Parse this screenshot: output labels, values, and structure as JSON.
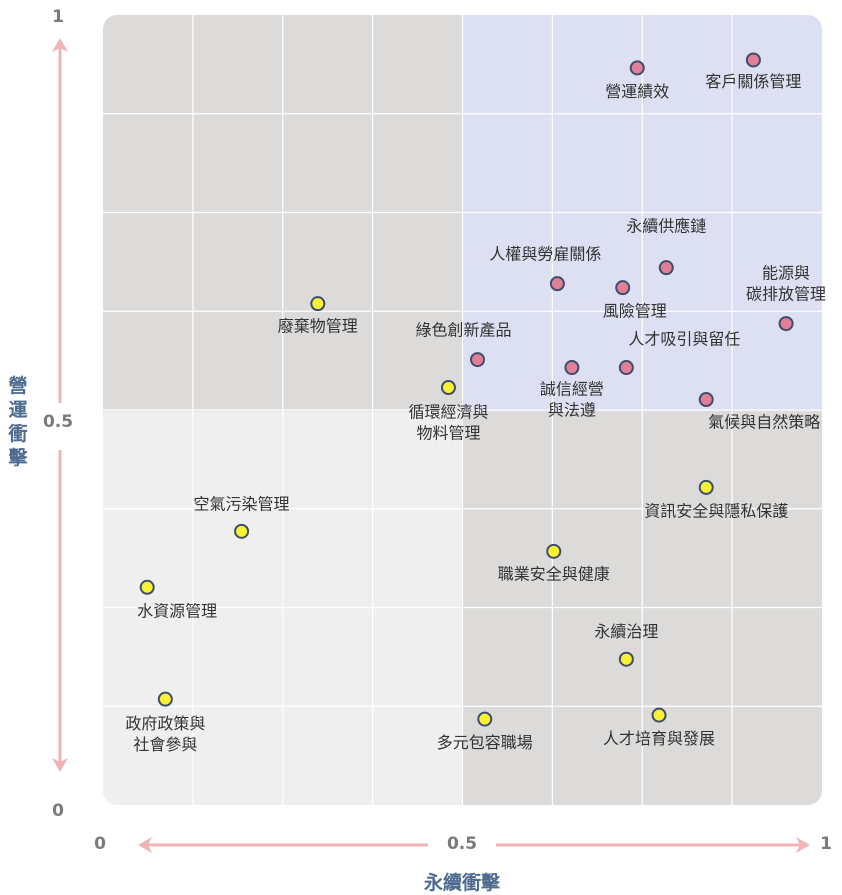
{
  "chart_data": {
    "type": "scatter",
    "xlabel": "永續衝擊",
    "ylabel": "營運衝擊",
    "xlim": [
      0,
      1
    ],
    "ylim": [
      0,
      1
    ],
    "x_ticks": [
      "0",
      "0.5",
      "1"
    ],
    "y_ticks": [
      "0",
      "0.5",
      "1"
    ],
    "grid": true,
    "quadrant_colors": {
      "top_left": "#dcdbd9",
      "top_right": "#dddff2",
      "bottom_left": "#efefef",
      "bottom_right": "#dcdbd9"
    },
    "marker_colors": {
      "pink": "#e07f95",
      "yellow": "#f8f234",
      "edge": "#3f4d6b"
    },
    "arrow_color": "#f0b4b4",
    "points": [
      {
        "label": [
          "客戶關係管理"
        ],
        "x": 0.9,
        "y": 0.94,
        "color": "pink"
      },
      {
        "label": [
          "營運績效"
        ],
        "x": 0.74,
        "y": 0.93,
        "color": "pink"
      },
      {
        "label": [
          "永續供應鏈"
        ],
        "x": 0.78,
        "y": 0.68,
        "color": "pink"
      },
      {
        "label": [
          "人權與勞雇關係"
        ],
        "x": 0.63,
        "y": 0.66,
        "color": "pink"
      },
      {
        "label": [
          "風險管理"
        ],
        "x": 0.72,
        "y": 0.655,
        "color": "pink"
      },
      {
        "label": [
          "能源與",
          "碳排放管理"
        ],
        "x": 0.945,
        "y": 0.61,
        "color": "pink"
      },
      {
        "label": [
          "綠色創新產品"
        ],
        "x": 0.52,
        "y": 0.565,
        "color": "pink"
      },
      {
        "label": [
          "人才吸引與留任"
        ],
        "x": 0.725,
        "y": 0.555,
        "color": "pink"
      },
      {
        "label": [
          "誠信經營",
          "與法遵"
        ],
        "x": 0.65,
        "y": 0.555,
        "color": "pink"
      },
      {
        "label": [
          "氣候與自然策略"
        ],
        "x": 0.835,
        "y": 0.515,
        "color": "pink"
      },
      {
        "label": [
          "廢棄物管理"
        ],
        "x": 0.3,
        "y": 0.635,
        "color": "yellow"
      },
      {
        "label": [
          "循環經濟與",
          "物料管理"
        ],
        "x": 0.48,
        "y": 0.53,
        "color": "yellow"
      },
      {
        "label": [
          "資訊安全與隱私保護"
        ],
        "x": 0.835,
        "y": 0.405,
        "color": "yellow"
      },
      {
        "label": [
          "空氣污染管理"
        ],
        "x": 0.195,
        "y": 0.35,
        "color": "yellow"
      },
      {
        "label": [
          "職業安全與健康"
        ],
        "x": 0.625,
        "y": 0.325,
        "color": "yellow"
      },
      {
        "label": [
          "水資源管理"
        ],
        "x": 0.065,
        "y": 0.28,
        "color": "yellow"
      },
      {
        "label": [
          "永續治理"
        ],
        "x": 0.725,
        "y": 0.19,
        "color": "yellow"
      },
      {
        "label": [
          "政府政策與",
          "社會參與"
        ],
        "x": 0.09,
        "y": 0.14,
        "color": "yellow"
      },
      {
        "label": [
          "多元包容職場"
        ],
        "x": 0.53,
        "y": 0.115,
        "color": "yellow"
      },
      {
        "label": [
          "人才培育與發展"
        ],
        "x": 0.77,
        "y": 0.12,
        "color": "yellow"
      }
    ]
  }
}
